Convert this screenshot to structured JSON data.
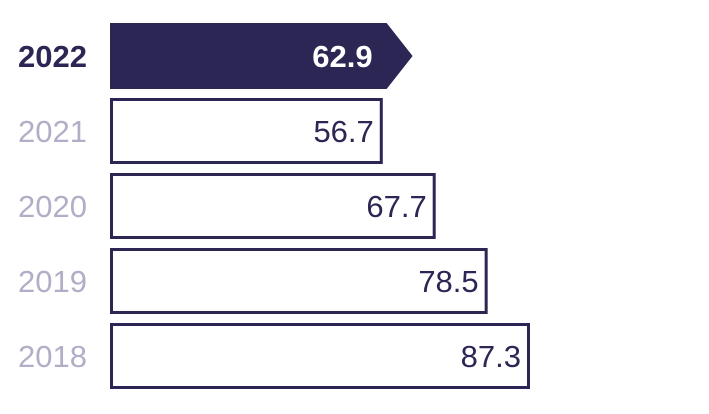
{
  "chart_data": {
    "type": "bar",
    "orientation": "horizontal",
    "categories": [
      "2022",
      "2021",
      "2020",
      "2019",
      "2018"
    ],
    "values": [
      62.9,
      56.7,
      67.7,
      78.5,
      87.3
    ],
    "value_labels": [
      "62.9",
      "56.7",
      "67.7",
      "78.5",
      "87.3"
    ],
    "highlight_category": "2022",
    "title": "",
    "xlabel": "",
    "ylabel": "",
    "xlim": [
      0,
      87.3
    ],
    "grid": false,
    "legend": "none"
  },
  "colors": {
    "accent": "#2b2653",
    "highlight_label": "#2b2653",
    "muted_label": "#b3aec8",
    "bar_outline": "#2b2653",
    "bar_fill_default": "#ffffff",
    "highlight_value_text": "#ffffff",
    "value_text": "#2b2653"
  }
}
